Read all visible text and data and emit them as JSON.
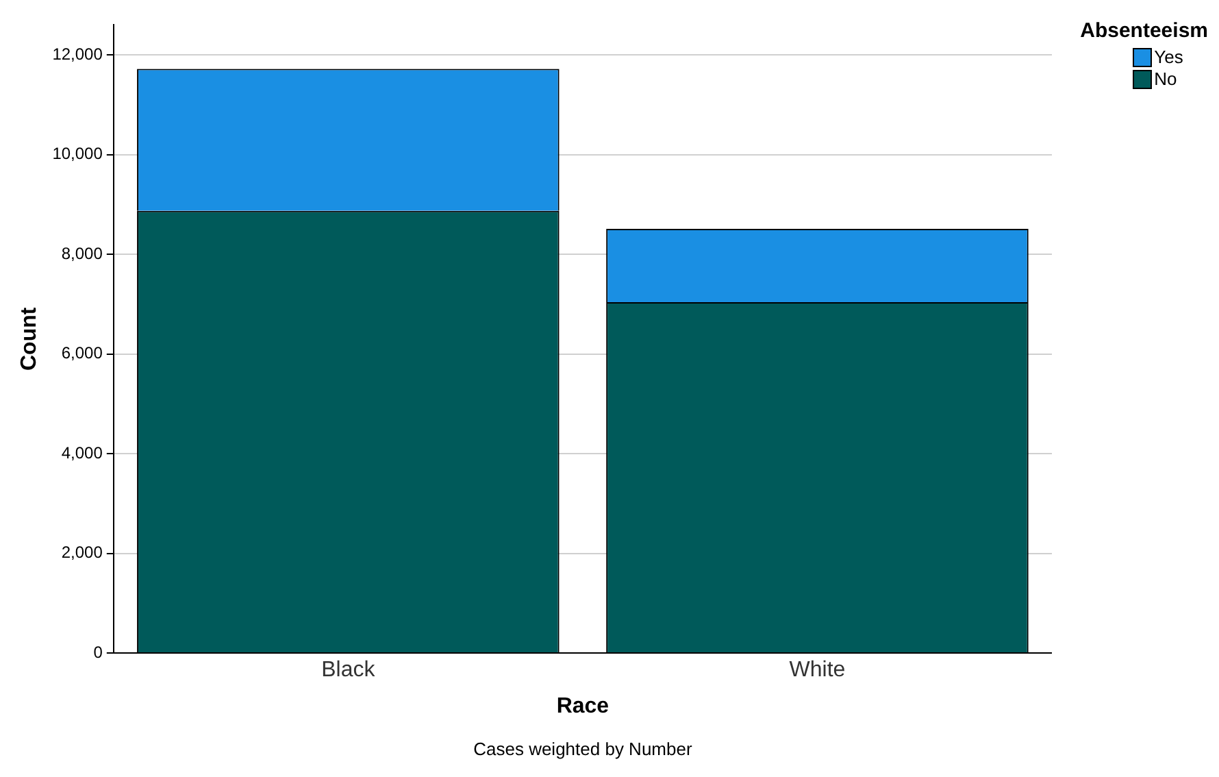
{
  "chart_data": {
    "type": "bar",
    "stacked": true,
    "xlabel": "Race",
    "ylabel": "Count",
    "legend_title": "Absenteeism",
    "legend": "top right",
    "grid": "y",
    "categories": [
      "Black",
      "White"
    ],
    "series": [
      {
        "name": "No",
        "color": "#005a5a",
        "values": [
          8870,
          7040
        ]
      },
      {
        "name": "Yes",
        "color": "#1a8fe3",
        "values": [
          2850,
          1470
        ]
      }
    ],
    "ylim": [
      0,
      12600
    ],
    "yticks": [
      0,
      {
        "value": 2000,
        "label": "2,000"
      },
      {
        "value": 4000,
        "label": "4,000"
      },
      {
        "value": 6000,
        "label": "6,000"
      },
      {
        "value": 8000,
        "label": "8,000"
      },
      {
        "value": 10000,
        "label": "10,000"
      },
      {
        "value": 12000,
        "label": "12,000"
      }
    ],
    "annotations": [
      "Cases weighted by Number"
    ]
  }
}
